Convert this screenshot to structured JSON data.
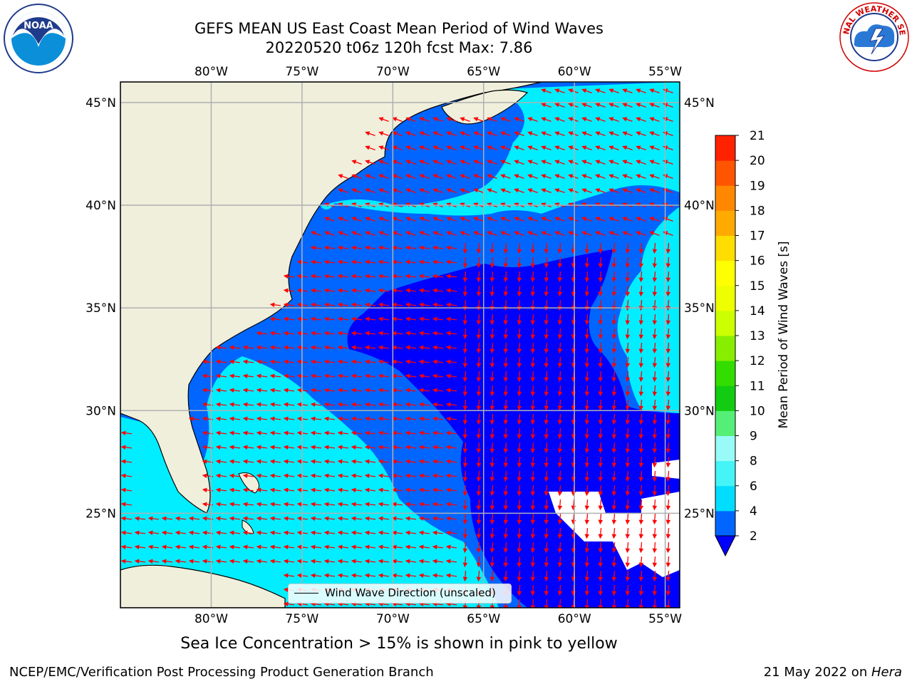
{
  "title": {
    "line1": "GEFS MEAN US East Coast Mean Period of Wind Waves",
    "line2": "20220520 t06z 120h fcst   Max: 7.86"
  },
  "logos": {
    "left": {
      "text": "NOAA",
      "icon": "noaa-logo"
    },
    "right": {
      "icon": "nws-logo",
      "text": "NATIONAL WEATHER SERVICE"
    }
  },
  "map": {
    "lon_labels": [
      "80°W",
      "75°W",
      "70°W",
      "65°W",
      "60°W",
      "55°W"
    ],
    "lat_labels": [
      "45°N",
      "40°N",
      "35°N",
      "30°N",
      "25°N"
    ],
    "lon_values": [
      -80,
      -75,
      -70,
      -65,
      -60,
      -55
    ],
    "lat_values": [
      45,
      40,
      35,
      30,
      25
    ],
    "lon_range": [
      -85,
      -54.2
    ],
    "lat_range": [
      20.4,
      46
    ],
    "land_color": "#efefdc",
    "grid_color": "#b0b0b0",
    "arrow_color": "#ff0000"
  },
  "legend": {
    "label": "Wind Wave Direction (unscaled)"
  },
  "colorbar": {
    "label": "Mean Period of Wind Waves [s]",
    "ticks": [
      "2",
      "4",
      "6",
      "8",
      "9",
      "10",
      "11",
      "12",
      "13",
      "14",
      "15",
      "16",
      "17",
      "18",
      "19",
      "20",
      "21"
    ],
    "colors": [
      "#0066ff",
      "#00ddff",
      "#44f4f7",
      "#99fbf7",
      "#55ee77",
      "#11cc11",
      "#33dd00",
      "#88ee00",
      "#ccff00",
      "#eeff00",
      "#ffff00",
      "#ffdd00",
      "#ffaa00",
      "#ff8800",
      "#ff5500",
      "#ff2200"
    ],
    "extend_color": "#0000ff"
  },
  "footer": {
    "note": "Sea Ice Concentration > 15% is shown in pink to yellow",
    "credit": "NCEP/EMC/Verification Post Processing Product Generation Branch",
    "date": "21 May 2022 on ",
    "machine": "Hera"
  }
}
